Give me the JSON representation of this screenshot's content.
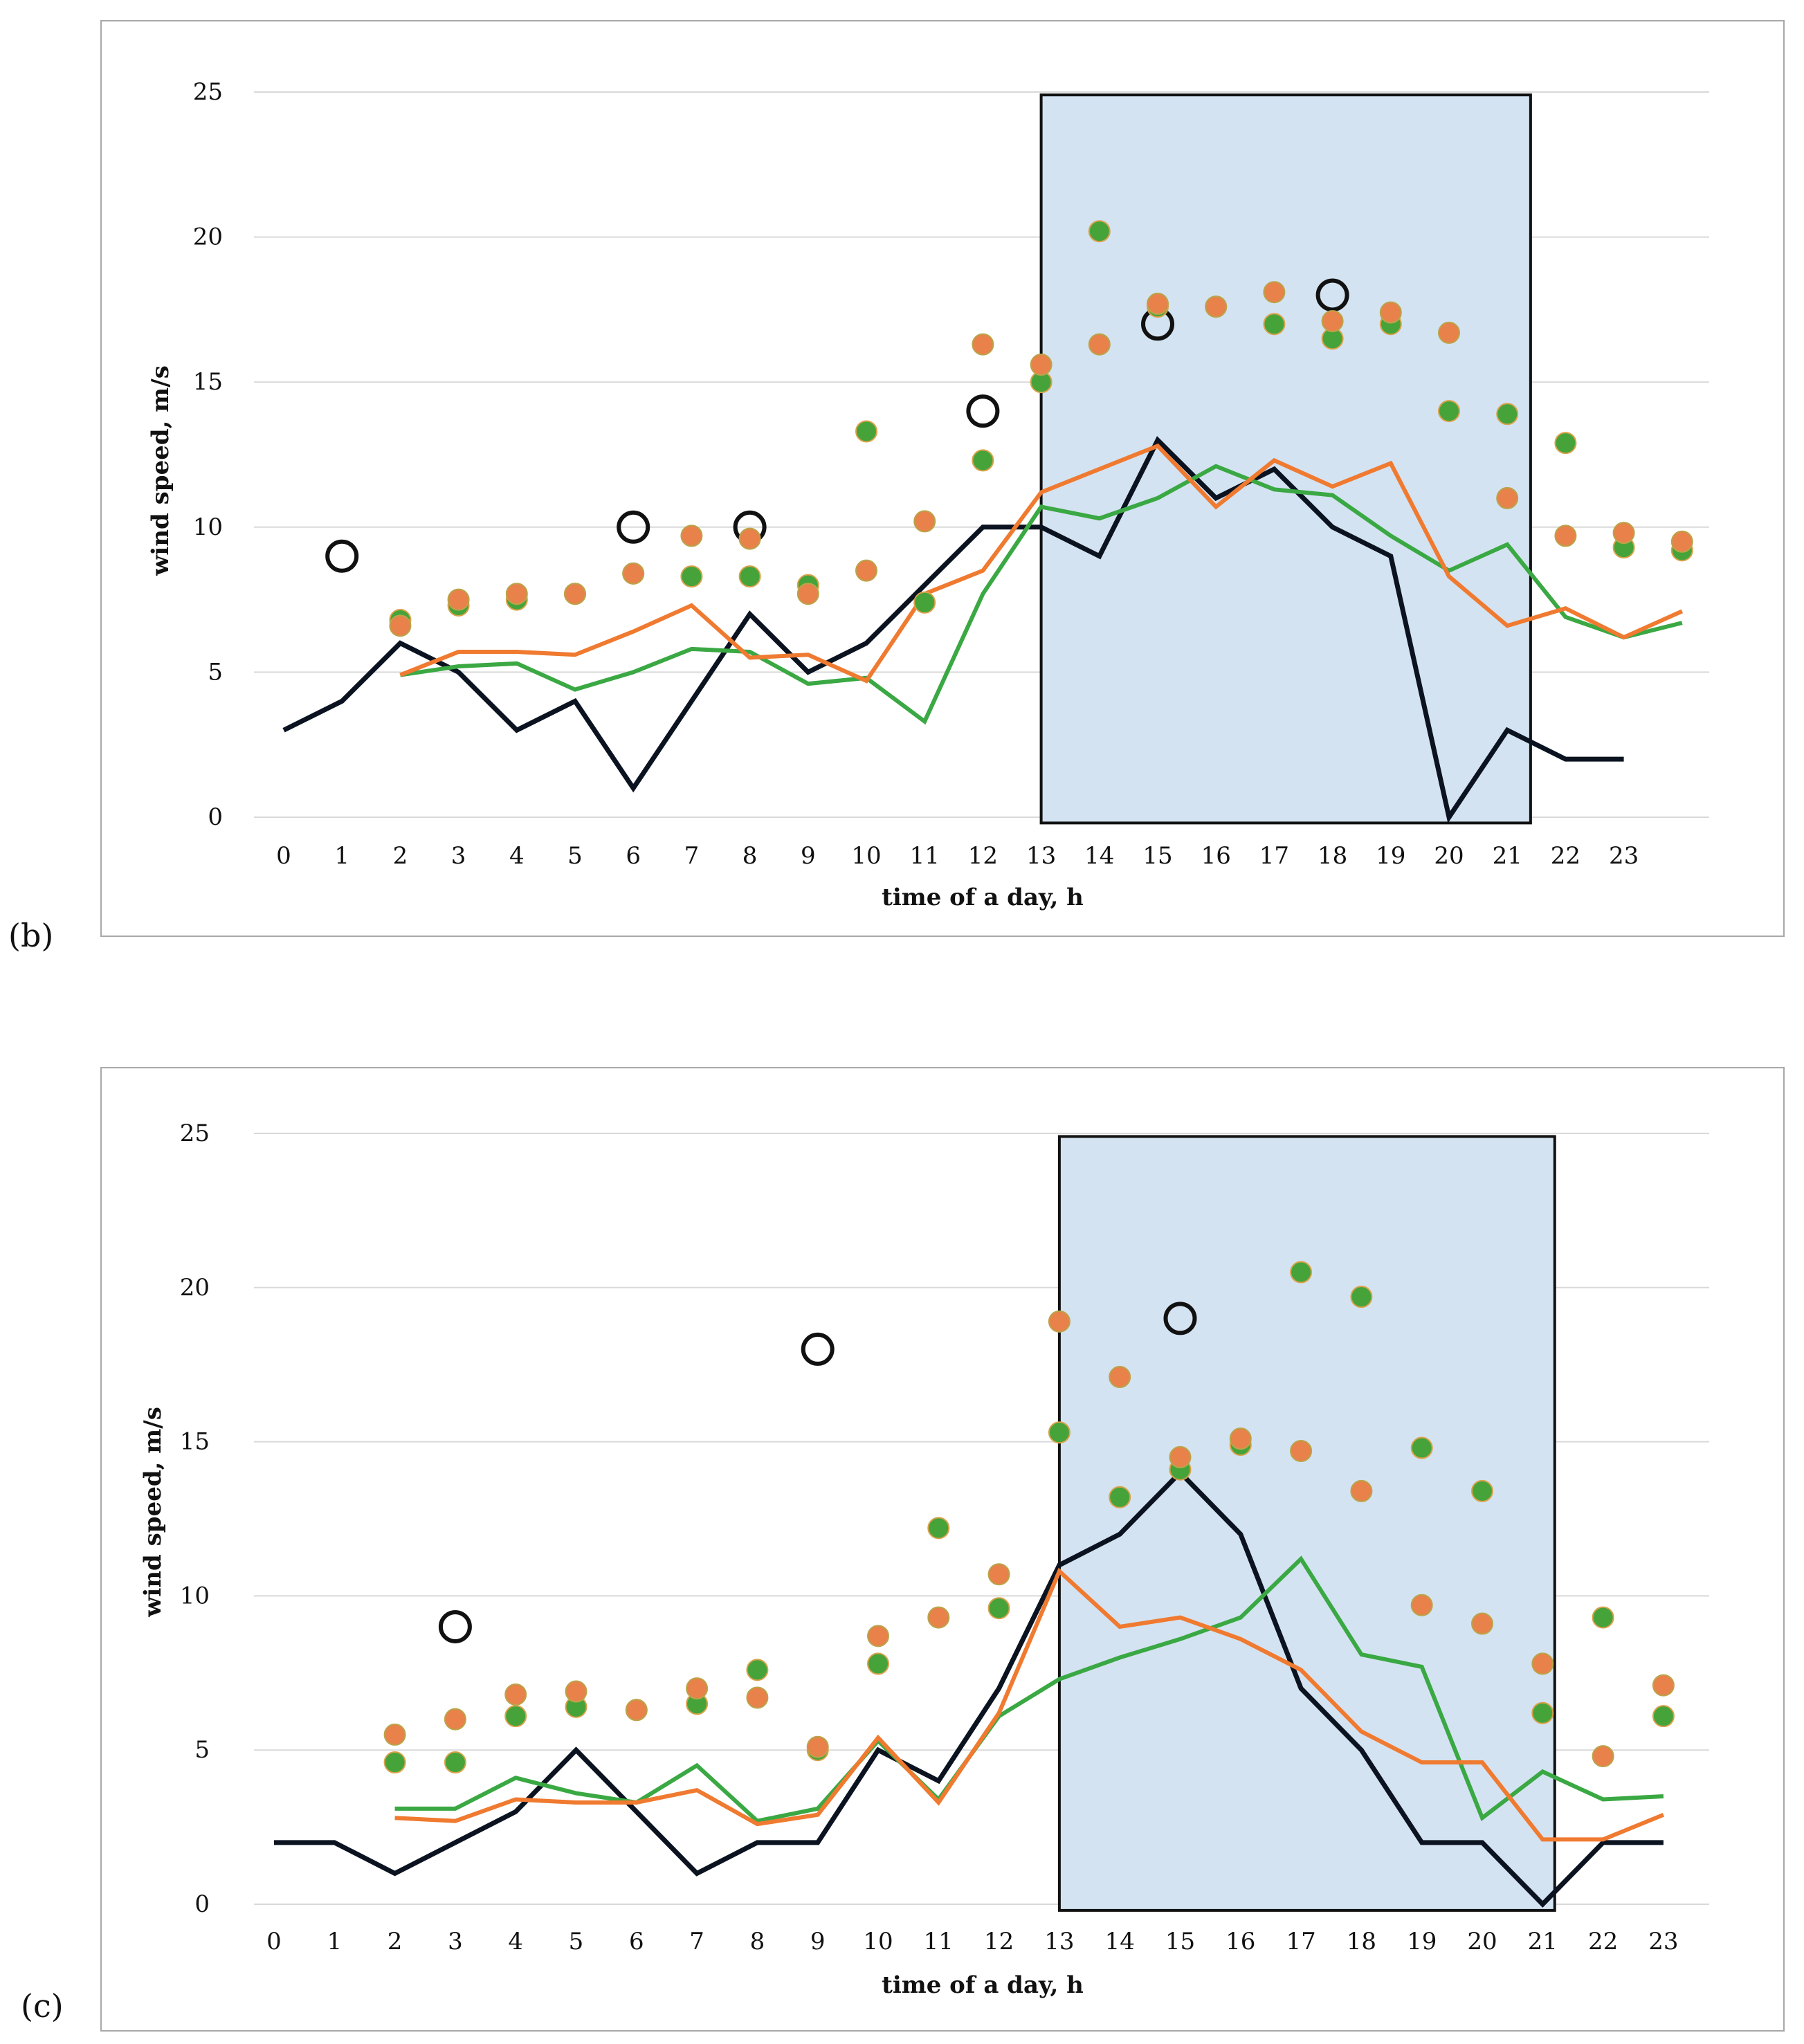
{
  "chart_data": [
    {
      "type": "line",
      "panel_label": "(b)",
      "xlabel": "time of a day, h",
      "ylabel": "wind speed, m/s",
      "ylim": [
        0,
        25
      ],
      "y_ticks": [
        "0",
        "5",
        "10",
        "15",
        "20",
        "25"
      ],
      "categories": [
        "0",
        "1",
        "2",
        "3",
        "4",
        "5",
        "6",
        "7",
        "8",
        "9",
        "10",
        "11",
        "12",
        "13",
        "14",
        "15",
        "16",
        "17",
        "18",
        "19",
        "20",
        "21",
        "22",
        "23"
      ],
      "highlight_range": [
        13,
        21.4
      ],
      "grid": "horizontal",
      "colors": {
        "black": "#0b1320",
        "green": "#3aa843",
        "orange": "#ef7a30",
        "dot_orange": "#e8814a",
        "dot_green": "#45a33a",
        "highlight": "#d4e3f1"
      },
      "series": [
        {
          "name": "black-line",
          "style": "line",
          "color": "#0b1320",
          "x": [
            0,
            1,
            2,
            3,
            4,
            5,
            6,
            7,
            8,
            9,
            10,
            11,
            12,
            13,
            14,
            15,
            16,
            17,
            18,
            19,
            20,
            21,
            22,
            23
          ],
          "values": [
            3,
            4,
            6,
            5,
            3,
            4,
            1,
            4,
            7,
            5,
            6,
            8,
            10,
            10,
            9,
            13,
            11,
            12,
            10,
            9,
            0,
            3,
            2,
            2
          ]
        },
        {
          "name": "green-line",
          "style": "line",
          "color": "#3aa843",
          "x": [
            2,
            3,
            4,
            5,
            6,
            7,
            8,
            9,
            10,
            11,
            12,
            13,
            14,
            15,
            16,
            17,
            18,
            19,
            20,
            21,
            22,
            23,
            24
          ],
          "values": [
            4.9,
            5.2,
            5.3,
            4.4,
            5.0,
            5.8,
            5.7,
            4.6,
            4.8,
            3.3,
            7.7,
            10.7,
            10.3,
            11.0,
            12.1,
            11.3,
            11.1,
            9.7,
            8.5,
            9.4,
            6.9,
            6.2,
            6.7
          ]
        },
        {
          "name": "orange-line",
          "style": "line",
          "color": "#ef7a30",
          "x": [
            2,
            3,
            4,
            5,
            6,
            7,
            8,
            9,
            10,
            11,
            12,
            13,
            14,
            15,
            16,
            17,
            18,
            19,
            20,
            21,
            22,
            23,
            24
          ],
          "values": [
            4.9,
            5.7,
            5.7,
            5.6,
            6.4,
            7.3,
            5.5,
            5.6,
            4.7,
            7.7,
            8.5,
            11.2,
            12.0,
            12.8,
            10.7,
            12.3,
            11.4,
            12.2,
            8.3,
            6.6,
            7.2,
            6.2,
            7.1
          ]
        },
        {
          "name": "open-circles",
          "style": "open-circle",
          "color": "#111111",
          "x": [
            1,
            6,
            8,
            12,
            15,
            18
          ],
          "values": [
            9,
            10,
            10,
            14,
            17,
            18
          ]
        },
        {
          "name": "green-dots",
          "style": "dot",
          "color": "#45a33a",
          "x": [
            2,
            3,
            4,
            5,
            6,
            7,
            8,
            9,
            10,
            11,
            12,
            13,
            14,
            15,
            16,
            17,
            18,
            19,
            20,
            21,
            22,
            23,
            24
          ],
          "values": [
            6.8,
            7.3,
            7.5,
            7.7,
            8.4,
            8.3,
            8.3,
            8.0,
            13.3,
            7.4,
            12.3,
            15.0,
            20.2,
            17.6,
            17.6,
            17.0,
            16.5,
            17.0,
            14.0,
            13.9,
            12.9,
            9.3,
            9.2
          ]
        },
        {
          "name": "orange-dots",
          "style": "dot",
          "color": "#e8814a",
          "x": [
            2,
            3,
            4,
            5,
            6,
            7,
            8,
            9,
            10,
            11,
            12,
            13,
            14,
            15,
            16,
            17,
            18,
            19,
            20,
            21,
            22,
            23,
            24
          ],
          "values": [
            6.6,
            7.5,
            7.7,
            7.7,
            8.4,
            9.7,
            9.6,
            7.7,
            8.5,
            10.2,
            16.3,
            15.6,
            16.3,
            17.7,
            17.6,
            18.1,
            17.1,
            17.4,
            16.7,
            11.0,
            9.7,
            9.8,
            9.5
          ]
        }
      ]
    },
    {
      "type": "line",
      "panel_label": "(c)",
      "xlabel": "time of a day, h",
      "ylabel": "wind speed, m/s",
      "ylim": [
        0,
        25
      ],
      "y_ticks": [
        "0",
        "5",
        "10",
        "15",
        "20",
        "25"
      ],
      "categories": [
        "0",
        "1",
        "2",
        "3",
        "4",
        "5",
        "6",
        "7",
        "8",
        "9",
        "10",
        "11",
        "12",
        "13",
        "14",
        "15",
        "16",
        "17",
        "18",
        "19",
        "20",
        "21",
        "22",
        "23"
      ],
      "highlight_range": [
        13,
        21.2
      ],
      "grid": "horizontal",
      "colors": {
        "black": "#0b1320",
        "green": "#3aa843",
        "orange": "#ef7a30",
        "dot_orange": "#e8814a",
        "dot_green": "#45a33a",
        "highlight": "#d4e3f1"
      },
      "series": [
        {
          "name": "black-line",
          "style": "line",
          "color": "#0b1320",
          "x": [
            0,
            1,
            2,
            3,
            4,
            5,
            6,
            7,
            8,
            9,
            10,
            11,
            12,
            13,
            14,
            15,
            16,
            17,
            18,
            19,
            20,
            21,
            22,
            23
          ],
          "values": [
            2,
            2,
            1,
            2,
            3,
            5,
            3,
            1,
            2,
            2,
            5,
            4,
            7,
            11,
            12,
            14,
            12,
            7,
            5,
            2,
            2,
            0,
            2,
            2
          ]
        },
        {
          "name": "green-line",
          "style": "line",
          "color": "#3aa843",
          "x": [
            2,
            3,
            4,
            5,
            6,
            7,
            8,
            9,
            10,
            11,
            12,
            13,
            14,
            15,
            16,
            17,
            18,
            19,
            20,
            21,
            22,
            23
          ],
          "values": [
            3.1,
            3.1,
            4.1,
            3.6,
            3.3,
            4.5,
            2.7,
            3.1,
            5.3,
            3.4,
            6.1,
            7.3,
            8.0,
            8.6,
            9.3,
            11.2,
            8.1,
            7.7,
            2.8,
            4.3,
            3.4,
            3.5
          ]
        },
        {
          "name": "orange-line",
          "style": "line",
          "color": "#ef7a30",
          "x": [
            2,
            3,
            4,
            5,
            6,
            7,
            8,
            9,
            10,
            11,
            12,
            13,
            14,
            15,
            16,
            17,
            18,
            19,
            20,
            21,
            22,
            23
          ],
          "values": [
            2.8,
            2.7,
            3.4,
            3.3,
            3.3,
            3.7,
            2.6,
            2.9,
            5.4,
            3.3,
            6.2,
            10.8,
            9.0,
            9.3,
            8.6,
            7.6,
            5.6,
            4.6,
            4.6,
            2.1,
            2.1,
            2.9
          ]
        },
        {
          "name": "open-circles",
          "style": "open-circle",
          "color": "#111111",
          "x": [
            3,
            9,
            15
          ],
          "values": [
            9,
            18,
            19
          ]
        },
        {
          "name": "green-dots",
          "style": "dot",
          "color": "#45a33a",
          "x": [
            2,
            3,
            4,
            5,
            6,
            7,
            8,
            9,
            10,
            11,
            12,
            13,
            14,
            15,
            16,
            17,
            18,
            19,
            20,
            21,
            22,
            23
          ],
          "values": [
            4.6,
            4.6,
            6.1,
            6.4,
            6.3,
            6.5,
            7.6,
            5.0,
            7.8,
            12.2,
            9.6,
            15.3,
            13.2,
            14.1,
            14.9,
            20.5,
            19.7,
            14.8,
            13.4,
            6.2,
            9.3,
            6.1
          ]
        },
        {
          "name": "orange-dots",
          "style": "dot",
          "color": "#e8814a",
          "x": [
            2,
            3,
            4,
            5,
            6,
            7,
            8,
            9,
            10,
            11,
            12,
            13,
            14,
            15,
            16,
            17,
            18,
            19,
            20,
            21,
            22,
            23
          ],
          "values": [
            5.5,
            6.0,
            6.8,
            6.9,
            6.3,
            7.0,
            6.7,
            5.1,
            8.7,
            9.3,
            10.7,
            18.9,
            17.1,
            14.5,
            15.1,
            14.7,
            13.4,
            9.7,
            9.1,
            7.8,
            4.8,
            7.1
          ]
        }
      ]
    }
  ]
}
